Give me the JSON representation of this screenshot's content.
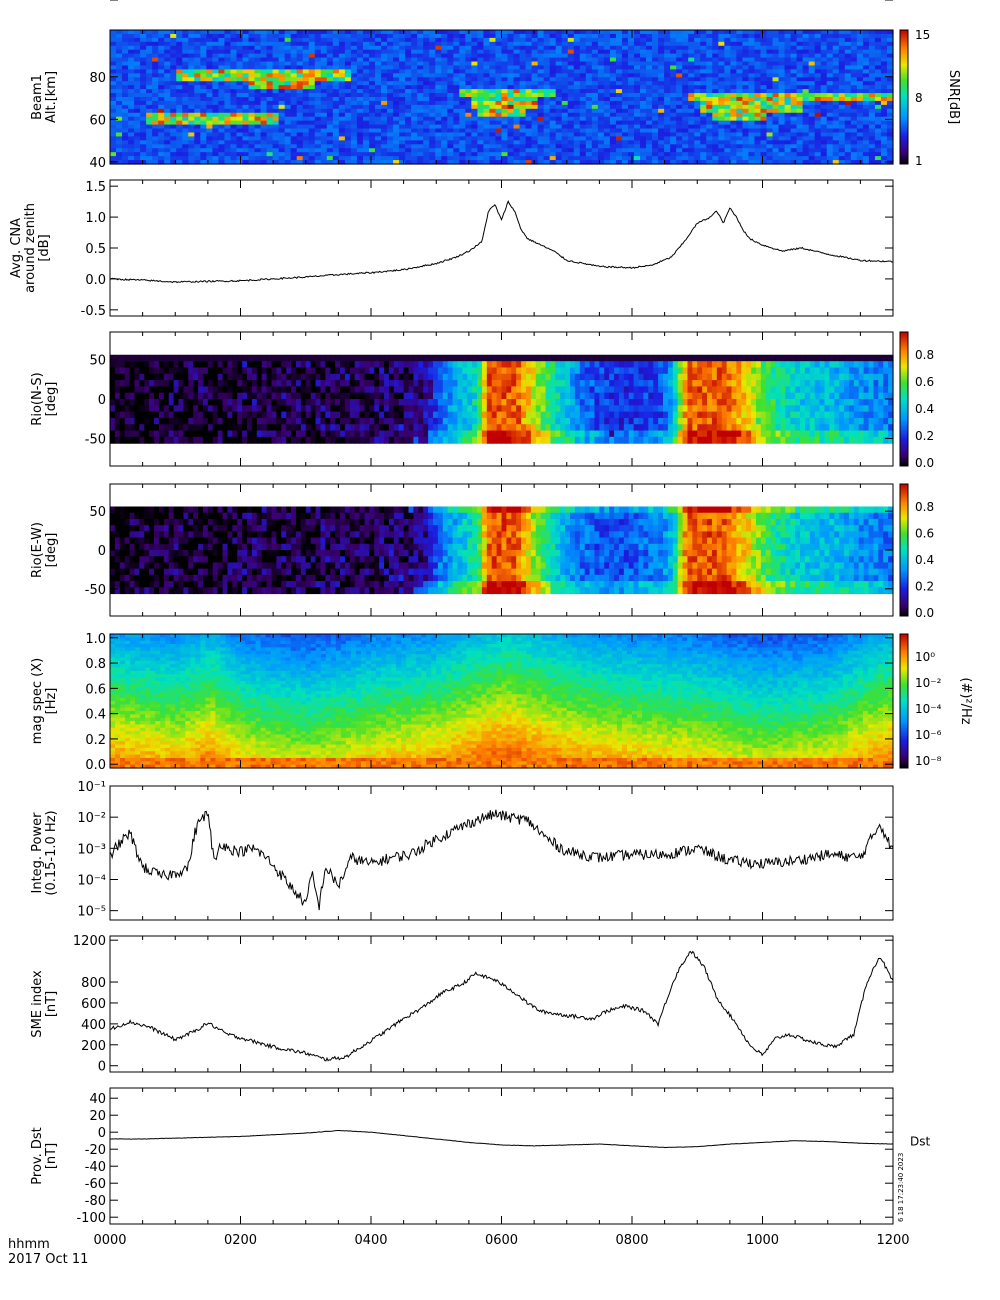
{
  "chart_data": [
    {
      "id": "p1",
      "type": "heatmap",
      "ylabel": [
        "Beam1",
        "Alt.[km]"
      ],
      "yticks": [
        40,
        60,
        80,
        100
      ],
      "ylim": [
        39,
        102
      ],
      "colorbar": {
        "label": "SNR[dB]",
        "ticks": [
          "1",
          "8",
          "15"
        ],
        "scale": "rainbow"
      },
      "description_data": {
        "bands": [
          {
            "x0": 0.5,
            "x1": 2.5,
            "alt": 60
          },
          {
            "x0": 1.0,
            "x1": 3.6,
            "alt": 81
          },
          {
            "x0": 2.1,
            "x1": 3.1,
            "alt": 77
          },
          {
            "x0": 5.3,
            "x1": 6.8,
            "alt": 72
          },
          {
            "x0": 5.5,
            "x1": 6.5,
            "alt": 68
          },
          {
            "x0": 5.6,
            "x1": 6.3,
            "alt": 64
          },
          {
            "x0": 8.8,
            "x1": 12.0,
            "alt": 70
          },
          {
            "x0": 9.0,
            "x1": 10.6,
            "alt": 66
          },
          {
            "x0": 9.2,
            "x1": 10.0,
            "alt": 62
          }
        ]
      }
    },
    {
      "id": "p2",
      "type": "line",
      "ylabel": [
        "Avg. CNA",
        "around zenith",
        "[dB]"
      ],
      "yticks": [
        "-0.5",
        "0.0",
        "0.5",
        "1.0",
        "1.5"
      ],
      "ylim": [
        -0.6,
        1.6
      ],
      "x": [
        0,
        0.5,
        1,
        1.5,
        2,
        2.5,
        3,
        3.5,
        4,
        4.5,
        5,
        5.3,
        5.5,
        5.7,
        5.8,
        5.9,
        6.0,
        6.1,
        6.2,
        6.3,
        6.4,
        6.6,
        6.8,
        7.0,
        7.5,
        8.0,
        8.3,
        8.6,
        8.8,
        9.0,
        9.2,
        9.3,
        9.4,
        9.5,
        9.6,
        9.7,
        9.8,
        10.0,
        10.3,
        10.6,
        11.0,
        11.5,
        12.0
      ],
      "values": [
        0.0,
        -0.02,
        -0.05,
        -0.04,
        -0.03,
        0.0,
        0.03,
        0.07,
        0.1,
        0.15,
        0.25,
        0.35,
        0.45,
        0.6,
        1.1,
        1.2,
        0.95,
        1.25,
        1.1,
        0.8,
        0.65,
        0.55,
        0.45,
        0.3,
        0.2,
        0.18,
        0.22,
        0.35,
        0.6,
        0.9,
        1.0,
        1.1,
        0.9,
        1.15,
        1.0,
        0.8,
        0.65,
        0.55,
        0.45,
        0.5,
        0.4,
        0.3,
        0.28
      ]
    },
    {
      "id": "p3",
      "type": "heatmap",
      "ylabel": [
        "Rio(N-S)",
        "[deg]"
      ],
      "yticks": [
        "-50",
        "0",
        "50"
      ],
      "ylim": [
        -85,
        85
      ],
      "colorbar": {
        "label": "",
        "ticks": [
          "0.0",
          "0.2",
          "0.4",
          "0.6",
          "0.8"
        ],
        "scale": "rainbow"
      },
      "x": [
        0,
        0.5,
        1,
        1.5,
        2,
        2.5,
        3,
        3.5,
        4,
        4.5,
        4.8,
        5.0,
        5.3,
        5.6,
        5.75,
        6.2,
        6.5,
        6.8,
        7.2,
        7.6,
        8.0,
        8.4,
        8.6,
        8.8,
        9.0,
        9.4,
        9.8,
        10.0,
        10.5,
        11.0,
        11.5,
        12.0
      ],
      "values": [
        0.02,
        0.02,
        0.03,
        0.03,
        0.04,
        0.05,
        0.05,
        0.06,
        0.07,
        0.08,
        0.1,
        0.28,
        0.4,
        0.5,
        0.9,
        0.9,
        0.7,
        0.5,
        0.3,
        0.22,
        0.22,
        0.25,
        0.4,
        0.88,
        0.9,
        0.9,
        0.72,
        0.6,
        0.45,
        0.42,
        0.35,
        0.32
      ]
    },
    {
      "id": "p4",
      "type": "heatmap",
      "ylabel": [
        "Rio(E-W)",
        "[deg]"
      ],
      "yticks": [
        "-50",
        "0",
        "50"
      ],
      "ylim": [
        -85,
        85
      ],
      "colorbar": {
        "label": "",
        "ticks": [
          "0.0",
          "0.2",
          "0.4",
          "0.6",
          "0.8"
        ],
        "scale": "rainbow"
      },
      "x": [
        0,
        0.5,
        1,
        1.5,
        2,
        2.5,
        3,
        3.5,
        4,
        4.5,
        4.8,
        5.0,
        5.3,
        5.6,
        5.75,
        6.2,
        6.5,
        6.8,
        7.2,
        7.6,
        8.0,
        8.4,
        8.6,
        8.8,
        9.0,
        9.4,
        9.8,
        10.0,
        10.5,
        11.0,
        11.5,
        12.0
      ],
      "values": [
        0.02,
        0.02,
        0.03,
        0.03,
        0.04,
        0.05,
        0.05,
        0.06,
        0.07,
        0.08,
        0.12,
        0.3,
        0.42,
        0.55,
        0.9,
        0.9,
        0.65,
        0.45,
        0.3,
        0.25,
        0.28,
        0.32,
        0.45,
        0.88,
        0.9,
        0.9,
        0.72,
        0.6,
        0.45,
        0.42,
        0.35,
        0.3
      ]
    },
    {
      "id": "p5",
      "type": "heatmap",
      "ylabel": [
        "mag spec (X)",
        "[Hz]"
      ],
      "yticks": [
        "0.0",
        "0.2",
        "0.4",
        "0.6",
        "0.8",
        "1.0"
      ],
      "ylim": [
        -0.03,
        1.03
      ],
      "colorbar": {
        "label": "(#)²/Hz",
        "ticks": [
          "10⁻⁸",
          "10⁻⁶",
          "10⁻⁴",
          "10⁻²",
          "10⁰"
        ],
        "scale": "rainbow"
      },
      "x": [
        0,
        1,
        1.5,
        2,
        3,
        4,
        5,
        6,
        7,
        8,
        9,
        10,
        11,
        11.5,
        12
      ],
      "values": [
        0.42,
        0.38,
        0.45,
        0.35,
        0.3,
        0.36,
        0.4,
        0.5,
        0.42,
        0.38,
        0.35,
        0.3,
        0.33,
        0.4,
        0.45
      ]
    },
    {
      "id": "p6",
      "type": "line",
      "yscale": "log",
      "ylabel": [
        "Integ. Power",
        "(0.15-1.0 Hz)"
      ],
      "yticks": [
        "10⁻⁵",
        "10⁻⁴",
        "10⁻³",
        "10⁻²",
        "10⁻¹"
      ],
      "ylim": [
        -5.3,
        -1.0
      ],
      "x": [
        0,
        0.3,
        0.5,
        0.8,
        1.0,
        1.2,
        1.3,
        1.4,
        1.5,
        1.6,
        1.7,
        1.8,
        2.0,
        2.2,
        2.4,
        2.6,
        2.8,
        3.0,
        3.1,
        3.2,
        3.3,
        3.5,
        3.7,
        4.0,
        4.3,
        4.6,
        5.0,
        5.3,
        5.6,
        5.9,
        6.1,
        6.4,
        6.7,
        7.0,
        7.5,
        8.0,
        8.5,
        9.0,
        9.5,
        10.0,
        10.5,
        11.0,
        11.5,
        11.8,
        12.0
      ],
      "values": [
        -3.2,
        -2.5,
        -3.6,
        -3.9,
        -3.8,
        -3.6,
        -2.5,
        -2.0,
        -1.9,
        -3.5,
        -2.8,
        -3.0,
        -3.1,
        -3.0,
        -3.3,
        -3.8,
        -4.3,
        -4.8,
        -3.8,
        -4.9,
        -3.6,
        -4.2,
        -3.3,
        -3.5,
        -3.3,
        -3.2,
        -2.7,
        -2.4,
        -2.1,
        -1.9,
        -2.0,
        -2.1,
        -2.7,
        -3.1,
        -3.3,
        -3.2,
        -3.2,
        -3.0,
        -3.4,
        -3.5,
        -3.4,
        -3.2,
        -3.3,
        -2.2,
        -3.1
      ]
    },
    {
      "id": "p7",
      "type": "line",
      "ylabel": [
        "SME index",
        "[nT]"
      ],
      "yticks": [
        "0",
        "200",
        "400",
        "600",
        "800",
        "1000",
        "1200"
      ],
      "ylim": [
        -60,
        1240
      ],
      "x": [
        0,
        0.3,
        0.6,
        1.0,
        1.3,
        1.5,
        1.8,
        2.1,
        2.5,
        3.0,
        3.3,
        3.6,
        3.9,
        4.2,
        4.5,
        4.8,
        5.1,
        5.4,
        5.6,
        5.9,
        6.2,
        6.4,
        6.6,
        7.0,
        7.4,
        7.6,
        7.9,
        8.2,
        8.4,
        8.6,
        8.7,
        8.9,
        9.1,
        9.3,
        9.6,
        9.8,
        10.0,
        10.2,
        10.4,
        10.8,
        11.1,
        11.4,
        11.6,
        11.8,
        12.0
      ],
      "values": [
        350,
        420,
        370,
        250,
        330,
        410,
        300,
        250,
        180,
        120,
        60,
        80,
        200,
        320,
        450,
        560,
        700,
        780,
        880,
        820,
        700,
        600,
        520,
        480,
        450,
        520,
        570,
        520,
        400,
        750,
        900,
        1100,
        950,
        650,
        400,
        200,
        100,
        260,
        300,
        220,
        180,
        300,
        800,
        1050,
        800
      ]
    },
    {
      "id": "p8",
      "type": "line",
      "ylabel": [
        "Prov. Dst",
        "[nT]"
      ],
      "yticks": [
        "-100",
        "-80",
        "-60",
        "-40",
        "-20",
        "0",
        "20",
        "40"
      ],
      "ylim": [
        -108,
        52
      ],
      "legend": "Dst",
      "x": [
        0,
        0.5,
        1,
        1.5,
        2,
        2.5,
        3,
        3.5,
        4,
        4.5,
        5,
        5.5,
        6,
        6.5,
        7,
        7.5,
        8,
        8.5,
        9,
        9.5,
        10,
        10.5,
        11,
        11.5,
        12
      ],
      "values": [
        -8,
        -8,
        -7,
        -6,
        -5,
        -3,
        -1,
        2,
        0,
        -4,
        -8,
        -12,
        -15,
        -16,
        -15,
        -14,
        -16,
        -18,
        -17,
        -14,
        -12,
        -10,
        -11,
        -13,
        -14
      ]
    }
  ],
  "xaxis": {
    "ticklabels": [
      "0000",
      "0200",
      "0400",
      "0600",
      "0800",
      "1000",
      "1200"
    ],
    "xlim": [
      0,
      12
    ],
    "unit_label": "hhmm",
    "date_label": "2017 Oct 11"
  },
  "side_label": "6 18 17:23:40 2023"
}
